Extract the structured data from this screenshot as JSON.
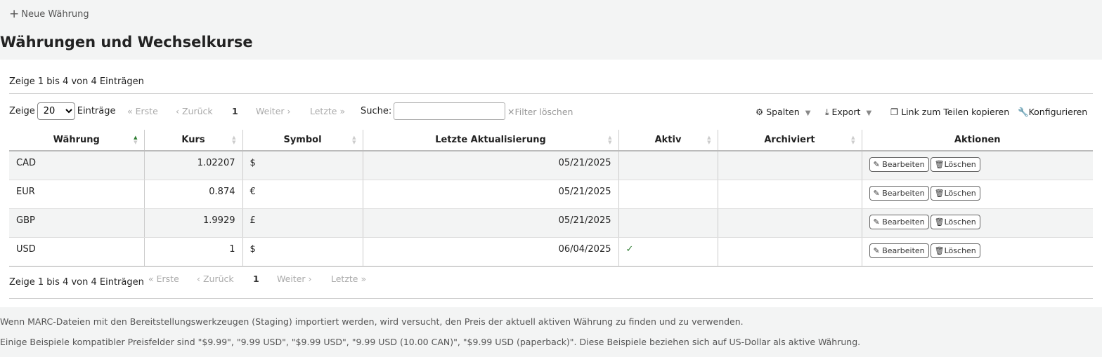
{
  "toolbar": {
    "new_currency": "Neue Währung"
  },
  "page_title": "Währungen und Wechselkurse",
  "info_top": "Zeige 1 bis 4 von 4 Einträgen",
  "info_bottom": "Zeige 1 bis 4 von 4 Einträgen",
  "length": {
    "prefix": "Zeige",
    "value": "20",
    "suffix": "Einträge"
  },
  "pager": {
    "first": "Erste",
    "prev": "Zurück",
    "page": "1",
    "next": "Weiter",
    "last": "Letzte"
  },
  "search": {
    "label": "Suche:",
    "value": "",
    "clear": "Filter löschen"
  },
  "tools": {
    "columns": "Spalten",
    "export": "Export",
    "copy_link": "Link zum Teilen kopieren",
    "configure": "Konfigurieren"
  },
  "columns": [
    "Währung",
    "Kurs",
    "Symbol",
    "Letzte Aktualisierung",
    "Aktiv",
    "Archiviert",
    "Aktionen"
  ],
  "rows": [
    {
      "currency": "CAD",
      "rate": "1.02207",
      "symbol": "$",
      "updated": "05/21/2025",
      "active": "",
      "archived": ""
    },
    {
      "currency": "EUR",
      "rate": "0.874",
      "symbol": "€",
      "updated": "05/21/2025",
      "active": "",
      "archived": ""
    },
    {
      "currency": "GBP",
      "rate": "1.9929",
      "symbol": "£",
      "updated": "05/21/2025",
      "active": "",
      "archived": ""
    },
    {
      "currency": "USD",
      "rate": "1",
      "symbol": "$",
      "updated": "06/04/2025",
      "active": "✓",
      "archived": ""
    }
  ],
  "actions": {
    "edit": "Bearbeiten",
    "delete": "Löschen"
  },
  "notes": [
    "Wenn MARC-Dateien mit den Bereitstellungswerkzeugen (Staging) importiert werden, wird versucht, den Preis der aktuell aktiven Währung zu finden und zu verwenden.",
    "Einige Beispiele kompatibler Preisfelder sind \"$9.99\", \"9.99 USD\", \"$9.99 USD\", \"9.99 USD (10.00 CAN)\", \"$9.99 USD (paperback)\". Diese Beispiele beziehen sich auf US-Dollar als aktive Währung."
  ]
}
